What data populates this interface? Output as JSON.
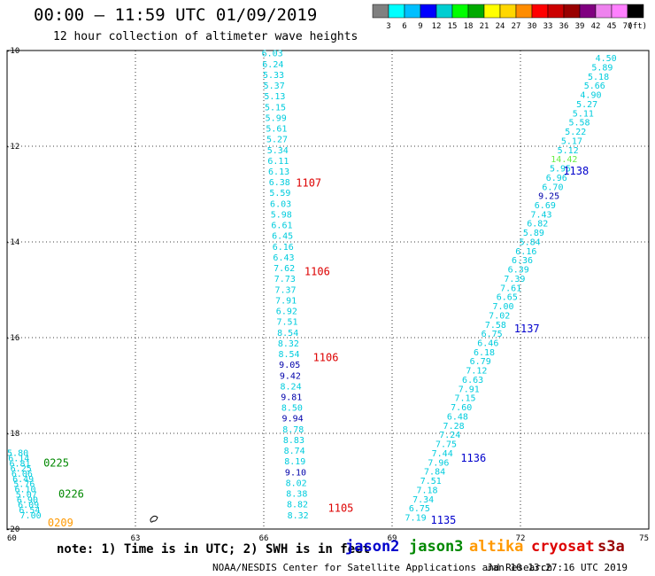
{
  "header": {
    "title": "00:00 – 11:59 UTC 01/09/2019",
    "subtitle": "12 hour collection of altimeter wave heights",
    "unit": "(ft)"
  },
  "colorbar": {
    "colors": [
      "#808080",
      "#00ffff",
      "#00bfff",
      "#0000ff",
      "#00ced1",
      "#00ff00",
      "#00aa00",
      "#ffff00",
      "#ffd700",
      "#ff8c00",
      "#ff0000",
      "#cc0000",
      "#990000",
      "#800080",
      "#ee82ee",
      "#ff80ff",
      "#000000"
    ],
    "labels": [
      "3",
      "6",
      "9",
      "12",
      "15",
      "18",
      "21",
      "24",
      "27",
      "30",
      "33",
      "36",
      "39",
      "42",
      "45",
      "70"
    ]
  },
  "axes": {
    "x_ticks": [
      "60",
      "63",
      "66",
      "69",
      "72",
      "75"
    ],
    "y_ticks": [
      "-10",
      "-12",
      "-14",
      "-16",
      "-18",
      "-20"
    ]
  },
  "tracks": [
    {
      "color": "#00ccdd",
      "start": [
        66.2,
        -10.05
      ],
      "end": [
        66.8,
        -19.7
      ],
      "values": [
        "6.03",
        "6.24",
        "5.33",
        "5.37",
        "5.13",
        "5.15",
        "5.99",
        "5.61",
        "5.27",
        "5.34",
        "6.11",
        "6.13",
        "6.38",
        "5.59",
        "6.03",
        "5.98",
        "6.61",
        "6.45",
        "6.16",
        "6.43",
        "7.62",
        "7.73",
        "7.37",
        "7.91",
        "6.92",
        "7.51",
        "8.54",
        "8.32",
        "8.54",
        "9.05",
        "9.42",
        "8.24",
        "9.81",
        "8.50",
        "9.94",
        "8.78",
        "8.83",
        "8.74",
        "8.19",
        "9.10",
        "8.02",
        "8.38",
        "8.82",
        "8.32"
      ],
      "dark": [
        29,
        30,
        32,
        34,
        39
      ]
    },
    {
      "color": "#00ccdd",
      "start": [
        74.0,
        -10.15
      ],
      "end": [
        69.55,
        -19.75
      ],
      "values": [
        "4.50",
        "5.89",
        "5.18",
        "5.66",
        "4.90",
        "5.27",
        "5.11",
        "5.58",
        "5.22",
        "5.17",
        "5.12",
        "14.42",
        "5.95",
        "6.96",
        "6.70",
        "9.25",
        "6.69",
        "7.43",
        "6.82",
        "5.89",
        "5.84",
        "6.16",
        "6.36",
        "6.39",
        "7.39",
        "7.61",
        "6.65",
        "7.00",
        "7.02",
        "7.58",
        "6.75",
        "6.46",
        "6.18",
        "6.79",
        "7.12",
        "6.63",
        "7.91",
        "7.15",
        "7.60",
        "6.48",
        "7.28",
        "7.24",
        "7.75",
        "7.44",
        "7.96",
        "7.84",
        "7.51",
        "7.18",
        "7.34",
        "6.75",
        "7.19"
      ],
      "dark": [
        15
      ],
      "green": [
        11
      ]
    },
    {
      "color": "#00ccdd",
      "start": [
        60.25,
        -18.4
      ],
      "end": [
        60.55,
        -19.7
      ],
      "values": [
        "5.80",
        "6.14",
        "6.81",
        "6.25",
        "6.06",
        "6.49",
        "5.76",
        "6.10",
        "5.07",
        "6.90",
        "6.09",
        "6.54",
        "7.00"
      ]
    }
  ],
  "labels": [
    {
      "text": "1107",
      "lon": 66.75,
      "lat": -12.75,
      "color": "#dd0000"
    },
    {
      "text": "1106",
      "lon": 66.95,
      "lat": -14.6,
      "color": "#dd0000"
    },
    {
      "text": "1106",
      "lon": 67.15,
      "lat": -16.4,
      "color": "#dd0000"
    },
    {
      "text": "1105",
      "lon": 67.5,
      "lat": -19.55,
      "color": "#dd0000"
    },
    {
      "text": "1138",
      "lon": 73.0,
      "lat": -12.5,
      "color": "#0000cc"
    },
    {
      "text": "1137",
      "lon": 71.85,
      "lat": -15.8,
      "color": "#0000cc"
    },
    {
      "text": "1136",
      "lon": 70.6,
      "lat": -18.5,
      "color": "#0000cc"
    },
    {
      "text": "1135",
      "lon": 69.9,
      "lat": -19.8,
      "color": "#0000cc"
    },
    {
      "text": "0225",
      "lon": 60.85,
      "lat": -18.6,
      "color": "#008800"
    },
    {
      "text": "0226",
      "lon": 61.2,
      "lat": -19.25,
      "color": "#008800"
    },
    {
      "text": "0209",
      "lon": 60.95,
      "lat": -19.85,
      "color": "#ff9900"
    }
  ],
  "footer": {
    "note": "note: 1) Time is in UTC; 2) SWH is in feet",
    "missions": [
      {
        "name": "jason2",
        "color": "#0000cc"
      },
      {
        "name": "jason3",
        "color": "#008800"
      },
      {
        "name": "altika",
        "color": "#ff9900"
      },
      {
        "name": "cryosat",
        "color": "#dd0000"
      },
      {
        "name": "s3a",
        "color": "#990000"
      }
    ],
    "credit": "NOAA/NESDIS Center for Satellite Applications and Research",
    "timestamp": "Jan 10 13:27:16 UTC 2019"
  }
}
